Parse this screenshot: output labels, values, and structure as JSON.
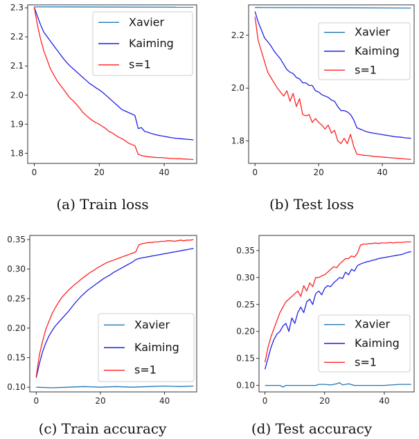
{
  "chart_data": [
    {
      "type": "line",
      "caption": "(a) Train loss",
      "xlim": [
        -2,
        50
      ],
      "ylim": [
        1.765,
        2.31
      ],
      "xticks": [
        0,
        20,
        40
      ],
      "yticks": [
        1.8,
        1.9,
        2.0,
        2.1,
        2.2,
        2.3
      ],
      "ytick_labels": [
        "1.8",
        "1.9",
        "2.0",
        "2.1",
        "2.2",
        "2.3"
      ],
      "legend_position": "top-right",
      "grid": false,
      "series": [
        {
          "name": "Xavier",
          "color": "#1f77b4",
          "x": [
            0,
            49
          ],
          "y": [
            2.303,
            2.302
          ]
        },
        {
          "name": "Kaiming",
          "color": "#1f1fe6",
          "x": [
            0,
            1,
            2,
            3,
            4,
            5,
            6,
            7,
            8,
            9,
            10,
            11,
            12,
            13,
            14,
            15,
            16,
            17,
            18,
            19,
            20,
            21,
            22,
            23,
            24,
            25,
            26,
            27,
            28,
            29,
            30,
            31,
            32,
            33,
            34,
            35,
            36,
            37,
            38,
            39,
            40,
            41,
            42,
            43,
            44,
            45,
            46,
            47,
            48,
            49
          ],
          "y": [
            2.302,
            2.27,
            2.24,
            2.215,
            2.2,
            2.185,
            2.17,
            2.155,
            2.14,
            2.125,
            2.112,
            2.1,
            2.09,
            2.08,
            2.07,
            2.06,
            2.05,
            2.04,
            2.033,
            2.025,
            2.018,
            2.01,
            2.0,
            1.99,
            1.98,
            1.97,
            1.96,
            1.95,
            1.945,
            1.94,
            1.935,
            1.93,
            1.885,
            1.888,
            1.875,
            1.872,
            1.868,
            1.865,
            1.862,
            1.86,
            1.858,
            1.856,
            1.854,
            1.852,
            1.851,
            1.85,
            1.849,
            1.848,
            1.847,
            1.846
          ]
        },
        {
          "name": "s=1",
          "color": "#ff2020",
          "x": [
            0,
            1,
            2,
            3,
            4,
            5,
            6,
            7,
            8,
            9,
            10,
            11,
            12,
            13,
            14,
            15,
            16,
            17,
            18,
            19,
            20,
            21,
            22,
            23,
            24,
            25,
            26,
            27,
            28,
            29,
            30,
            31,
            32,
            33,
            34,
            35,
            36,
            37,
            38,
            39,
            40,
            41,
            42,
            43,
            44,
            45,
            46,
            47,
            48,
            49
          ],
          "y": [
            2.302,
            2.24,
            2.19,
            2.15,
            2.12,
            2.09,
            2.07,
            2.05,
            2.035,
            2.02,
            2.005,
            1.99,
            1.98,
            1.968,
            1.955,
            1.94,
            1.93,
            1.92,
            1.912,
            1.905,
            1.9,
            1.892,
            1.885,
            1.875,
            1.87,
            1.862,
            1.855,
            1.85,
            1.843,
            1.835,
            1.83,
            1.826,
            1.797,
            1.792,
            1.79,
            1.788,
            1.787,
            1.786,
            1.785,
            1.785,
            1.784,
            1.783,
            1.782,
            1.782,
            1.781,
            1.781,
            1.78,
            1.78,
            1.779,
            1.778
          ]
        }
      ]
    },
    {
      "type": "line",
      "caption": "(b) Test loss",
      "xlim": [
        -2,
        50
      ],
      "ylim": [
        1.715,
        2.315
      ],
      "xticks": [
        0,
        20,
        40
      ],
      "yticks": [
        1.8,
        2.0,
        2.2
      ],
      "ytick_labels": [
        "1.8",
        "2.0",
        "2.2"
      ],
      "legend_position": "top-right",
      "grid": false,
      "series": [
        {
          "name": "Xavier",
          "color": "#1f77b4",
          "x": [
            0,
            49
          ],
          "y": [
            2.305,
            2.303
          ]
        },
        {
          "name": "Kaiming",
          "color": "#1f1fe6",
          "x": [
            0,
            1,
            2,
            3,
            4,
            5,
            6,
            7,
            8,
            9,
            10,
            11,
            12,
            13,
            14,
            15,
            16,
            17,
            18,
            19,
            20,
            21,
            22,
            23,
            24,
            25,
            26,
            27,
            28,
            29,
            30,
            31,
            32,
            33,
            34,
            35,
            36,
            37,
            38,
            39,
            40,
            41,
            42,
            43,
            44,
            45,
            46,
            47,
            48,
            49
          ],
          "y": [
            2.29,
            2.25,
            2.22,
            2.19,
            2.175,
            2.16,
            2.14,
            2.125,
            2.11,
            2.09,
            2.07,
            2.06,
            2.055,
            2.04,
            2.035,
            2.02,
            2.02,
            2.01,
            2.01,
            1.99,
            1.985,
            1.975,
            1.97,
            1.965,
            1.955,
            1.95,
            1.93,
            1.915,
            1.915,
            1.91,
            1.9,
            1.88,
            1.85,
            1.845,
            1.84,
            1.835,
            1.832,
            1.83,
            1.828,
            1.826,
            1.824,
            1.822,
            1.82,
            1.818,
            1.816,
            1.815,
            1.814,
            1.812,
            1.811,
            1.81
          ]
        },
        {
          "name": "s=1",
          "color": "#ff2020",
          "x": [
            0,
            1,
            2,
            3,
            4,
            5,
            6,
            7,
            8,
            9,
            10,
            11,
            12,
            13,
            14,
            15,
            16,
            17,
            18,
            19,
            20,
            21,
            22,
            23,
            24,
            25,
            26,
            27,
            28,
            29,
            30,
            31,
            32,
            33,
            34,
            35,
            36,
            37,
            38,
            39,
            40,
            41,
            42,
            43,
            44,
            45,
            46,
            47,
            48,
            49
          ],
          "y": [
            2.27,
            2.18,
            2.14,
            2.1,
            2.06,
            2.04,
            2.02,
            2.0,
            1.985,
            1.97,
            1.99,
            1.95,
            1.98,
            1.93,
            1.96,
            1.9,
            1.895,
            1.9,
            1.87,
            1.885,
            1.87,
            1.86,
            1.845,
            1.86,
            1.83,
            1.84,
            1.8,
            1.79,
            1.81,
            1.79,
            1.825,
            1.78,
            1.75,
            1.748,
            1.746,
            1.745,
            1.744,
            1.742,
            1.741,
            1.74,
            1.739,
            1.738,
            1.737,
            1.736,
            1.735,
            1.734,
            1.733,
            1.732,
            1.731,
            1.73
          ]
        }
      ]
    },
    {
      "type": "line",
      "caption": "(c) Train accuracy",
      "xlim": [
        -2,
        50
      ],
      "ylim": [
        0.092,
        0.357
      ],
      "xticks": [
        0,
        20,
        40
      ],
      "yticks": [
        0.1,
        0.15,
        0.2,
        0.25,
        0.3,
        0.35
      ],
      "ytick_labels": [
        "0.10",
        "0.15",
        "0.20",
        "0.25",
        "0.30",
        "0.35"
      ],
      "legend_position": "lower-right",
      "grid": false,
      "series": [
        {
          "name": "Xavier",
          "color": "#1f77b4",
          "x": [
            0,
            5,
            10,
            15,
            20,
            25,
            30,
            35,
            40,
            45,
            49
          ],
          "y": [
            0.1,
            0.099,
            0.1,
            0.101,
            0.1,
            0.101,
            0.1,
            0.101,
            0.102,
            0.101,
            0.102
          ]
        },
        {
          "name": "Kaiming",
          "color": "#1f1fe6",
          "x": [
            0,
            1,
            2,
            3,
            4,
            5,
            6,
            7,
            8,
            9,
            10,
            11,
            12,
            13,
            14,
            15,
            16,
            17,
            18,
            19,
            20,
            21,
            22,
            23,
            24,
            25,
            26,
            27,
            28,
            29,
            30,
            31,
            32,
            33,
            34,
            35,
            36,
            37,
            38,
            39,
            40,
            41,
            42,
            43,
            44,
            45,
            46,
            47,
            48,
            49
          ],
          "y": [
            0.116,
            0.14,
            0.16,
            0.175,
            0.187,
            0.196,
            0.204,
            0.21,
            0.216,
            0.222,
            0.228,
            0.235,
            0.242,
            0.248,
            0.254,
            0.259,
            0.264,
            0.268,
            0.272,
            0.276,
            0.28,
            0.284,
            0.287,
            0.29,
            0.294,
            0.297,
            0.3,
            0.303,
            0.306,
            0.309,
            0.312,
            0.316,
            0.318,
            0.319,
            0.32,
            0.321,
            0.322,
            0.323,
            0.324,
            0.325,
            0.326,
            0.327,
            0.328,
            0.329,
            0.33,
            0.331,
            0.332,
            0.333,
            0.334,
            0.335
          ]
        },
        {
          "name": "s=1",
          "color": "#ff2020",
          "x": [
            0,
            1,
            2,
            3,
            4,
            5,
            6,
            7,
            8,
            9,
            10,
            11,
            12,
            13,
            14,
            15,
            16,
            17,
            18,
            19,
            20,
            21,
            22,
            23,
            24,
            25,
            26,
            27,
            28,
            29,
            30,
            31,
            32,
            33,
            34,
            35,
            36,
            37,
            38,
            39,
            40,
            41,
            42,
            43,
            44,
            45,
            46,
            47,
            48,
            49
          ],
          "y": [
            0.118,
            0.155,
            0.178,
            0.198,
            0.212,
            0.225,
            0.235,
            0.244,
            0.252,
            0.258,
            0.264,
            0.269,
            0.274,
            0.278,
            0.283,
            0.287,
            0.291,
            0.295,
            0.298,
            0.302,
            0.305,
            0.308,
            0.311,
            0.313,
            0.315,
            0.317,
            0.319,
            0.321,
            0.323,
            0.325,
            0.327,
            0.329,
            0.341,
            0.343,
            0.344,
            0.345,
            0.345,
            0.346,
            0.346,
            0.347,
            0.347,
            0.348,
            0.348,
            0.347,
            0.348,
            0.349,
            0.348,
            0.349,
            0.349,
            0.35
          ]
        }
      ]
    },
    {
      "type": "line",
      "caption": "(d) Test accuracy",
      "xlim": [
        -2,
        50
      ],
      "ylim": [
        0.088,
        0.378
      ],
      "xticks": [
        0,
        20,
        40
      ],
      "yticks": [
        0.1,
        0.15,
        0.2,
        0.25,
        0.3,
        0.35
      ],
      "ytick_labels": [
        "0.10",
        "0.15",
        "0.20",
        "0.25",
        "0.30",
        "0.35"
      ],
      "legend_position": "lower-right",
      "grid": false,
      "series": [
        {
          "name": "Xavier",
          "color": "#1f77b4",
          "x": [
            0,
            2,
            4,
            5,
            6,
            7,
            8,
            10,
            14,
            17,
            18,
            19,
            20,
            22,
            24,
            25,
            26,
            27,
            28,
            30,
            32,
            35,
            40,
            45,
            49
          ],
          "y": [
            0.1,
            0.1,
            0.1,
            0.1,
            0.097,
            0.1,
            0.1,
            0.1,
            0.1,
            0.1,
            0.102,
            0.102,
            0.102,
            0.101,
            0.103,
            0.105,
            0.101,
            0.102,
            0.103,
            0.1,
            0.1,
            0.1,
            0.1,
            0.102,
            0.102
          ]
        },
        {
          "name": "Kaiming",
          "color": "#1f1fe6",
          "x": [
            0,
            1,
            2,
            3,
            4,
            5,
            6,
            7,
            8,
            9,
            10,
            11,
            12,
            13,
            14,
            15,
            16,
            17,
            18,
            19,
            20,
            21,
            22,
            23,
            24,
            25,
            26,
            27,
            28,
            29,
            30,
            31,
            32,
            33,
            34,
            35,
            36,
            37,
            38,
            39,
            40,
            41,
            42,
            43,
            44,
            45,
            46,
            47,
            48,
            49
          ],
          "y": [
            0.13,
            0.15,
            0.17,
            0.185,
            0.195,
            0.2,
            0.21,
            0.215,
            0.2,
            0.225,
            0.215,
            0.235,
            0.245,
            0.235,
            0.255,
            0.26,
            0.25,
            0.27,
            0.275,
            0.268,
            0.28,
            0.285,
            0.283,
            0.29,
            0.295,
            0.3,
            0.298,
            0.31,
            0.305,
            0.315,
            0.312,
            0.322,
            0.325,
            0.327,
            0.329,
            0.33,
            0.332,
            0.333,
            0.335,
            0.336,
            0.337,
            0.338,
            0.339,
            0.34,
            0.341,
            0.342,
            0.343,
            0.345,
            0.347,
            0.348
          ]
        },
        {
          "name": "s=1",
          "color": "#ff2020",
          "x": [
            0,
            1,
            2,
            3,
            4,
            5,
            6,
            7,
            8,
            9,
            10,
            11,
            12,
            13,
            14,
            15,
            16,
            17,
            18,
            19,
            20,
            21,
            22,
            23,
            24,
            25,
            26,
            27,
            28,
            29,
            30,
            31,
            32,
            33,
            34,
            35,
            36,
            37,
            38,
            39,
            40,
            41,
            42,
            43,
            44,
            45,
            46,
            47,
            48,
            49
          ],
          "y": [
            0.143,
            0.17,
            0.19,
            0.205,
            0.22,
            0.235,
            0.245,
            0.255,
            0.26,
            0.265,
            0.27,
            0.275,
            0.265,
            0.285,
            0.275,
            0.29,
            0.283,
            0.3,
            0.3,
            0.303,
            0.305,
            0.31,
            0.315,
            0.32,
            0.318,
            0.325,
            0.33,
            0.335,
            0.335,
            0.34,
            0.338,
            0.345,
            0.36,
            0.362,
            0.362,
            0.363,
            0.363,
            0.364,
            0.363,
            0.364,
            0.364,
            0.364,
            0.365,
            0.364,
            0.365,
            0.365,
            0.365,
            0.366,
            0.366,
            0.366
          ]
        }
      ]
    }
  ]
}
